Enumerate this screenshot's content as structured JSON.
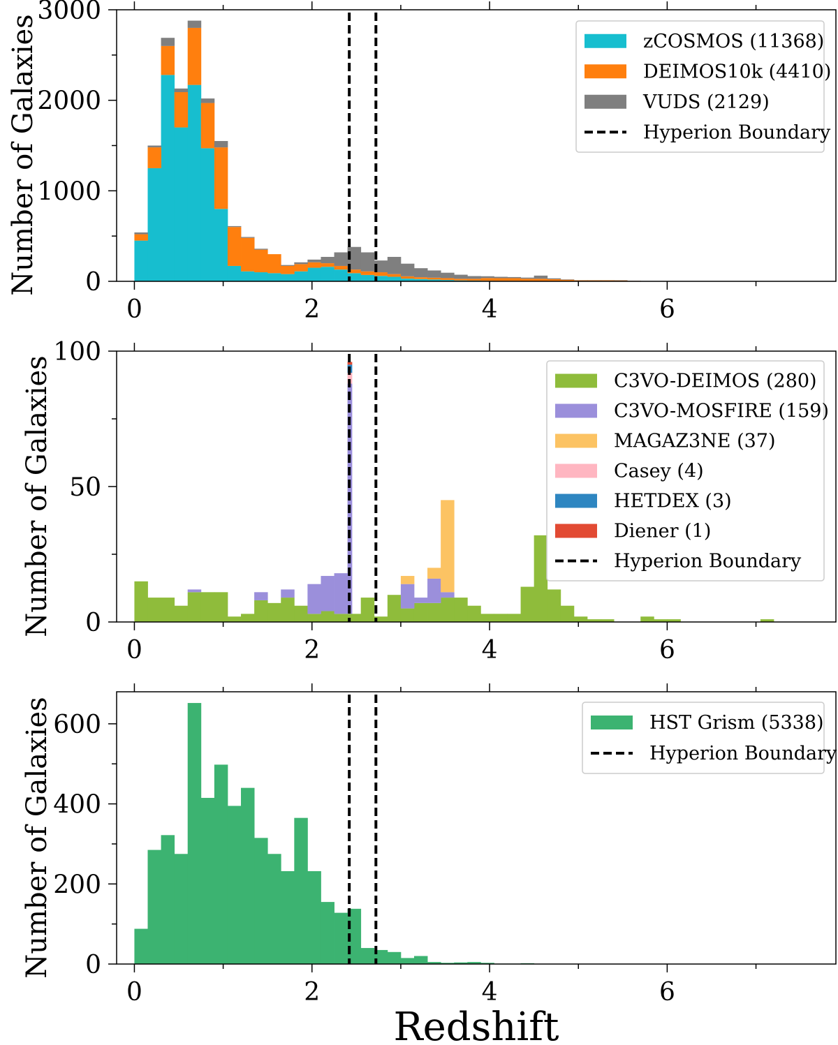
{
  "figure": {
    "xlabel": "Redshift"
  },
  "chart_data": [
    {
      "type": "bar",
      "stacked": true,
      "title": "",
      "xlabel": "",
      "ylabel": "Number of Galaxies",
      "xlim": [
        -0.2,
        7.9
      ],
      "ylim": [
        0,
        3000
      ],
      "xticks": [
        0,
        2,
        4,
        6
      ],
      "yticks": [
        0,
        1000,
        2000,
        3000
      ],
      "yminor": 500,
      "xminor": 1,
      "bin_width": 0.15,
      "legend_position": "top-right",
      "boundaries": [
        2.42,
        2.72
      ],
      "boundary_label": "Hyperion Boundary",
      "bin_starts": [
        0.0,
        0.15,
        0.3,
        0.45,
        0.6,
        0.75,
        0.9,
        1.05,
        1.2,
        1.35,
        1.5,
        1.65,
        1.8,
        1.95,
        2.1,
        2.25,
        2.4,
        2.55,
        2.7,
        2.85,
        3.0,
        3.15,
        3.3,
        3.45,
        3.6,
        3.75,
        3.9,
        4.05,
        4.2,
        4.35,
        4.5,
        4.65,
        4.8,
        4.95,
        5.1,
        5.25,
        5.4,
        5.55
      ],
      "series": [
        {
          "name": "zCOSMOS (11368)",
          "color": "#17becf",
          "values": [
            450,
            1250,
            2280,
            1700,
            2170,
            1470,
            800,
            170,
            110,
            100,
            90,
            80,
            110,
            150,
            160,
            130,
            90,
            70,
            60,
            50,
            30,
            25,
            20,
            15,
            10,
            8,
            6,
            5,
            5,
            4,
            3,
            3,
            2,
            1,
            1,
            1,
            0,
            0
          ]
        },
        {
          "name": "DEIMOS10k (4410)",
          "color": "#ff7f0e",
          "values": [
            70,
            230,
            320,
            390,
            630,
            500,
            680,
            430,
            370,
            250,
            210,
            90,
            80,
            60,
            40,
            40,
            40,
            40,
            40,
            30,
            25,
            20,
            20,
            20,
            18,
            20,
            30,
            30,
            30,
            25,
            25,
            20,
            15,
            10,
            10,
            10,
            10,
            5
          ]
        },
        {
          "name": "VUDS (2129)",
          "color": "#7f7f7f",
          "values": [
            20,
            20,
            90,
            40,
            80,
            50,
            70,
            10,
            10,
            10,
            0,
            10,
            20,
            30,
            70,
            150,
            250,
            210,
            130,
            190,
            140,
            100,
            80,
            60,
            45,
            30,
            20,
            15,
            12,
            12,
            35,
            10,
            5,
            2,
            2,
            2,
            3,
            1
          ]
        }
      ]
    },
    {
      "type": "bar",
      "stacked": true,
      "title": "",
      "xlabel": "",
      "ylabel": "Number of Galaxies",
      "xlim": [
        -0.2,
        7.9
      ],
      "ylim": [
        0,
        100
      ],
      "xticks": [
        0,
        2,
        4,
        6
      ],
      "yticks": [
        0,
        50,
        100
      ],
      "yminor": 25,
      "xminor": 1,
      "bin_width": 0.15,
      "legend_position": "top-right",
      "boundaries": [
        2.42,
        2.72
      ],
      "boundary_label": "Hyperion Boundary",
      "bin_starts": [
        0.0,
        0.15,
        0.3,
        0.45,
        0.6,
        0.75,
        0.9,
        1.05,
        1.2,
        1.35,
        1.5,
        1.65,
        1.8,
        1.95,
        2.1,
        2.25,
        2.4,
        2.45,
        2.55,
        2.7,
        2.85,
        3.0,
        3.15,
        3.3,
        3.45,
        3.6,
        3.75,
        3.9,
        4.05,
        4.2,
        4.35,
        4.5,
        4.65,
        4.8,
        4.95,
        5.1,
        5.25,
        5.4,
        5.55,
        5.7,
        5.85,
        6.0,
        6.15,
        6.3,
        6.45,
        6.6,
        6.75,
        6.9,
        7.05
      ],
      "bin_widths": [
        0.15,
        0.15,
        0.15,
        0.15,
        0.15,
        0.15,
        0.15,
        0.15,
        0.15,
        0.15,
        0.15,
        0.15,
        0.15,
        0.15,
        0.15,
        0.15,
        0.05,
        0.1,
        0.15,
        0.15,
        0.15,
        0.15,
        0.15,
        0.15,
        0.15,
        0.15,
        0.15,
        0.15,
        0.15,
        0.15,
        0.15,
        0.15,
        0.15,
        0.15,
        0.15,
        0.15,
        0.15,
        0.15,
        0.15,
        0.15,
        0.15,
        0.15,
        0.15,
        0.15,
        0.15,
        0.15,
        0.15,
        0.15,
        0.15
      ],
      "series": [
        {
          "name": "C3VO-DEIMOS (280)",
          "color": "#8fbc3b",
          "values": [
            15,
            9,
            9,
            6,
            11,
            11,
            11,
            2,
            3,
            8,
            7,
            9,
            6,
            3,
            4,
            3,
            3,
            3,
            9,
            2,
            10,
            5,
            7,
            7,
            9,
            9,
            6,
            3,
            3,
            3,
            13,
            32,
            12,
            6,
            2,
            1,
            1,
            0,
            0,
            2,
            1,
            1,
            0,
            0,
            0,
            0,
            0,
            0,
            1
          ]
        },
        {
          "name": "C3VO-MOSFIRE (159)",
          "color": "#9b8fdb",
          "values": [
            0,
            0,
            0,
            0,
            1,
            0,
            0,
            0,
            0,
            3,
            0,
            3,
            0,
            11,
            13,
            15,
            85,
            0,
            0,
            0,
            0,
            9,
            2,
            9,
            2,
            0,
            0,
            0,
            0,
            0,
            0,
            0,
            0,
            0,
            0,
            0,
            0,
            0,
            0,
            0,
            0,
            0,
            0,
            0,
            0,
            0,
            0,
            0,
            0
          ]
        },
        {
          "name": "MAGAZ3NE (37)",
          "color": "#fcc363",
          "values": [
            0,
            0,
            0,
            0,
            0,
            0,
            0,
            0,
            0,
            0,
            0,
            0,
            0,
            0,
            0,
            0,
            0,
            0,
            0,
            0,
            0,
            3,
            0,
            4,
            34,
            0,
            0,
            0,
            0,
            0,
            0,
            0,
            0,
            0,
            0,
            0,
            0,
            0,
            0,
            0,
            0,
            0,
            0,
            0,
            0,
            0,
            0,
            0,
            0
          ]
        },
        {
          "name": "Casey (4)",
          "color": "#ffb6c1",
          "values": [
            0,
            0,
            0,
            0,
            0,
            0,
            0,
            0,
            0,
            0,
            0,
            0,
            0,
            0,
            0,
            0,
            4,
            0,
            0,
            0,
            0,
            0,
            0,
            0,
            0,
            0,
            0,
            0,
            0,
            0,
            0,
            0,
            0,
            0,
            0,
            0,
            0,
            0,
            0,
            0,
            0,
            0,
            0,
            0,
            0,
            0,
            0,
            0,
            0
          ]
        },
        {
          "name": "HETDEX (3)",
          "color": "#2e86c1",
          "values": [
            0,
            0,
            0,
            0,
            0,
            0,
            0,
            0,
            0,
            0,
            0,
            0,
            0,
            0,
            0,
            0,
            3,
            0,
            0,
            0,
            0,
            0,
            0,
            0,
            0,
            0,
            0,
            0,
            0,
            0,
            0,
            0,
            0,
            0,
            0,
            0,
            0,
            0,
            0,
            0,
            0,
            0,
            0,
            0,
            0,
            0,
            0,
            0,
            0
          ]
        },
        {
          "name": "Diener (1)",
          "color": "#e24a33",
          "values": [
            0,
            0,
            0,
            0,
            0,
            0,
            0,
            0,
            0,
            0,
            0,
            0,
            0,
            0,
            0,
            0,
            1,
            0,
            0,
            0,
            0,
            0,
            0,
            0,
            0,
            0,
            0,
            0,
            0,
            0,
            0,
            0,
            0,
            0,
            0,
            0,
            0,
            0,
            0,
            0,
            0,
            0,
            0,
            0,
            0,
            0,
            0,
            0,
            0
          ]
        }
      ]
    },
    {
      "type": "bar",
      "stacked": false,
      "title": "",
      "xlabel": "Redshift",
      "ylabel": "Number of Galaxies",
      "xlim": [
        -0.2,
        7.9
      ],
      "ylim": [
        0,
        680
      ],
      "xticks": [
        0,
        2,
        4,
        6
      ],
      "yticks": [
        0,
        200,
        400,
        600
      ],
      "yminor": 100,
      "xminor": 1,
      "bin_width": 0.15,
      "legend_position": "top-right",
      "boundaries": [
        2.42,
        2.72
      ],
      "boundary_label": "Hyperion Boundary",
      "bin_starts": [
        0.0,
        0.15,
        0.3,
        0.45,
        0.6,
        0.75,
        0.9,
        1.05,
        1.2,
        1.35,
        1.5,
        1.65,
        1.8,
        1.95,
        2.1,
        2.25,
        2.4,
        2.55,
        2.7,
        2.85,
        3.0,
        3.15,
        3.3,
        3.45,
        3.6,
        3.75,
        3.9,
        4.05,
        4.2,
        4.35
      ],
      "series": [
        {
          "name": "HST Grism (5338)",
          "color": "#3cb371",
          "values": [
            88,
            285,
            322,
            275,
            652,
            415,
            498,
            395,
            440,
            315,
            275,
            232,
            365,
            232,
            155,
            128,
            138,
            40,
            35,
            30,
            15,
            20,
            5,
            3,
            4,
            5,
            3,
            1,
            1,
            2
          ]
        }
      ]
    }
  ]
}
